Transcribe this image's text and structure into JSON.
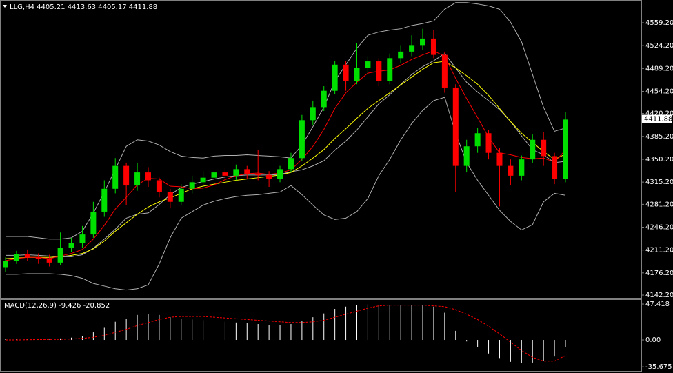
{
  "chart_data": [
    {
      "type": "candlestick",
      "title": "LLG,H4",
      "quote": [
        4405.21,
        4413.63,
        4405.17,
        4411.88
      ],
      "up_color": "#00e000",
      "down_color": "#ff0000",
      "open": [
        4185,
        4195,
        4205,
        4200,
        4198,
        4192,
        4215,
        4222,
        4235,
        4270,
        4305,
        4340,
        4310,
        4330,
        4318,
        4300,
        4285,
        4305,
        4315,
        4322,
        4330,
        4325,
        4335,
        4328,
        4326,
        4320,
        4335,
        4352,
        4410,
        4430,
        4455,
        4495,
        4470,
        4490,
        4500,
        4470,
        4505,
        4515,
        4525,
        4535,
        4510,
        4460,
        4340,
        4370,
        4390,
        4360,
        4340,
        4325,
        4350,
        4380,
        4355,
        4320
      ],
      "high": [
        4200,
        4210,
        4212,
        4206,
        4204,
        4238,
        4230,
        4248,
        4285,
        4318,
        4352,
        4345,
        4345,
        4338,
        4322,
        4305,
        4312,
        4325,
        4332,
        4340,
        4338,
        4342,
        4340,
        4365,
        4332,
        4340,
        4360,
        4418,
        4440,
        4462,
        4500,
        4500,
        4528,
        4508,
        4505,
        4512,
        4525,
        4540,
        4550,
        4548,
        4515,
        4465,
        4380,
        4398,
        4395,
        4368,
        4350,
        4356,
        4388,
        4392,
        4360,
        4422
      ],
      "low": [
        4178,
        4190,
        4194,
        4190,
        4186,
        4188,
        4208,
        4215,
        4230,
        4262,
        4298,
        4280,
        4302,
        4308,
        4292,
        4275,
        4280,
        4298,
        4308,
        4315,
        4318,
        4318,
        4320,
        4318,
        4308,
        4315,
        4330,
        4348,
        4402,
        4424,
        4450,
        4455,
        4465,
        4480,
        4462,
        4465,
        4498,
        4508,
        4518,
        4505,
        4452,
        4300,
        4330,
        4360,
        4350,
        4278,
        4310,
        4318,
        4345,
        4340,
        4312,
        4315
      ],
      "close": [
        4195,
        4205,
        4200,
        4198,
        4192,
        4215,
        4222,
        4235,
        4270,
        4305,
        4340,
        4310,
        4330,
        4318,
        4300,
        4285,
        4305,
        4315,
        4322,
        4330,
        4325,
        4335,
        4328,
        4326,
        4320,
        4335,
        4352,
        4410,
        4430,
        4455,
        4495,
        4470,
        4490,
        4500,
        4470,
        4505,
        4515,
        4525,
        4535,
        4510,
        4460,
        4340,
        4370,
        4390,
        4360,
        4340,
        4325,
        4350,
        4380,
        4355,
        4320,
        4411
      ],
      "lines": [
        {
          "color": "#b0b0b0",
          "values": [
            4232,
            4232,
            4232,
            4230,
            4228,
            4228,
            4230,
            4240,
            4268,
            4300,
            4335,
            4370,
            4380,
            4378,
            4372,
            4362,
            4355,
            4353,
            4352,
            4355,
            4356,
            4356,
            4357,
            4356,
            4355,
            4354,
            4352,
            4372,
            4400,
            4430,
            4470,
            4495,
            4520,
            4540,
            4545,
            4548,
            4550,
            4555,
            4558,
            4562,
            4580,
            4590,
            4590,
            4588,
            4585,
            4580,
            4560,
            4530,
            4480,
            4430,
            4393,
            4398
          ]
        },
        {
          "color": "#b0b0b0",
          "values": [
            4203,
            4203,
            4204,
            4203,
            4202,
            4201,
            4201,
            4204,
            4214,
            4228,
            4243,
            4260,
            4266,
            4268,
            4281,
            4296,
            4307,
            4312,
            4316,
            4320,
            4323,
            4325,
            4326,
            4326,
            4326,
            4327,
            4331,
            4334,
            4340,
            4348,
            4364,
            4378,
            4395,
            4415,
            4435,
            4449,
            4465,
            4480,
            4492,
            4501,
            4512,
            4490,
            4468,
            4453,
            4440,
            4426,
            4408,
            4386,
            4365,
            4357,
            4345,
            4347
          ]
        },
        {
          "color": "#b0b0b0",
          "values": [
            4174,
            4174,
            4175,
            4175,
            4175,
            4174,
            4172,
            4168,
            4160,
            4156,
            4152,
            4150,
            4152,
            4158,
            4190,
            4230,
            4260,
            4270,
            4280,
            4286,
            4290,
            4293,
            4295,
            4296,
            4298,
            4300,
            4310,
            4296,
            4280,
            4265,
            4258,
            4260,
            4270,
            4290,
            4325,
            4350,
            4380,
            4405,
            4425,
            4440,
            4445,
            4390,
            4345,
            4318,
            4295,
            4272,
            4255,
            4242,
            4250,
            4285,
            4298,
            4295
          ]
        },
        {
          "color": "#ffff00",
          "values": [
            4198,
            4199,
            4200,
            4200,
            4200,
            4201,
            4203,
            4206,
            4213,
            4225,
            4240,
            4253,
            4266,
            4277,
            4285,
            4291,
            4298,
            4305,
            4309,
            4312,
            4315,
            4318,
            4320,
            4322,
            4324,
            4326,
            4330,
            4340,
            4352,
            4365,
            4382,
            4397,
            4413,
            4428,
            4440,
            4452,
            4464,
            4476,
            4488,
            4498,
            4500,
            4490,
            4478,
            4465,
            4448,
            4428,
            4408,
            4390,
            4376,
            4362,
            4350,
            4358
          ]
        },
        {
          "color": "#ff0000",
          "values": [
            4195,
            4198,
            4200,
            4200,
            4198,
            4202,
            4206,
            4212,
            4228,
            4249,
            4274,
            4292,
            4311,
            4321,
            4320,
            4309,
            4308,
            4305,
            4306,
            4311,
            4319,
            4325,
            4328,
            4329,
            4327,
            4329,
            4334,
            4350,
            4370,
            4396,
            4428,
            4452,
            4468,
            4482,
            4485,
            4487,
            4494,
            4503,
            4510,
            4516,
            4508,
            4474,
            4443,
            4414,
            4384,
            4360,
            4357,
            4353,
            4351,
            4352,
            4346,
            4364
          ]
        }
      ],
      "ylim": [
        4138.0,
        4591.9
      ],
      "yticks": [
        {
          "value": 4559.2,
          "label": "4559.20"
        },
        {
          "value": 4524.2,
          "label": "4524.20"
        },
        {
          "value": 4489.2,
          "label": "4489.20"
        },
        {
          "value": 4454.2,
          "label": "4454.20"
        },
        {
          "value": 4420.2,
          "label": "4420.20"
        },
        {
          "value": 4385.2,
          "label": "4385.20"
        },
        {
          "value": 4350.2,
          "label": "4350.20"
        },
        {
          "value": 4315.2,
          "label": "4315.20"
        },
        {
          "value": 4281.2,
          "label": "4281.20"
        },
        {
          "value": 4246.2,
          "label": "4246.20"
        },
        {
          "value": 4211.2,
          "label": "4211.20"
        },
        {
          "value": 4176.2,
          "label": "4176.20"
        },
        {
          "value": 4142.2,
          "label": "4142.20"
        }
      ]
    },
    {
      "type": "macd",
      "title": "MACD(12,26,9)",
      "title_values": [
        -9.426,
        -20.852
      ],
      "histogram": {
        "color": "#ffffff",
        "values": [
          1,
          1,
          1,
          1,
          0.5,
          2,
          3,
          5,
          10,
          16,
          24,
          28,
          33,
          34,
          33,
          30,
          28,
          27,
          26,
          25,
          24,
          23,
          22,
          21,
          20,
          20,
          21,
          25,
          30,
          35,
          41,
          44,
          46,
          47,
          46,
          46,
          46,
          46,
          46,
          44,
          36,
          12,
          -2,
          -10,
          -18,
          -24,
          -29,
          -31,
          -30,
          -28,
          -22,
          -9.426
        ]
      },
      "signal": {
        "color": "#ff0000",
        "values": [
          0,
          0,
          0.3,
          0.5,
          0.6,
          0.8,
          1.2,
          2,
          3.5,
          6,
          10,
          14,
          19,
          23,
          27,
          30,
          31,
          31,
          31,
          30,
          29,
          28,
          27,
          26,
          25,
          24,
          23,
          23,
          24,
          26,
          30,
          34,
          38,
          42,
          45,
          46,
          46,
          46,
          46,
          45,
          44,
          40,
          34,
          27,
          18,
          8,
          -3,
          -14,
          -23,
          -28,
          -28,
          -20.852
        ]
      },
      "ylim": [
        -41,
        52
      ],
      "yticks": [
        47.418,
        {
          "value": 0,
          "label": "0.00"
        },
        -35.675
      ]
    }
  ]
}
